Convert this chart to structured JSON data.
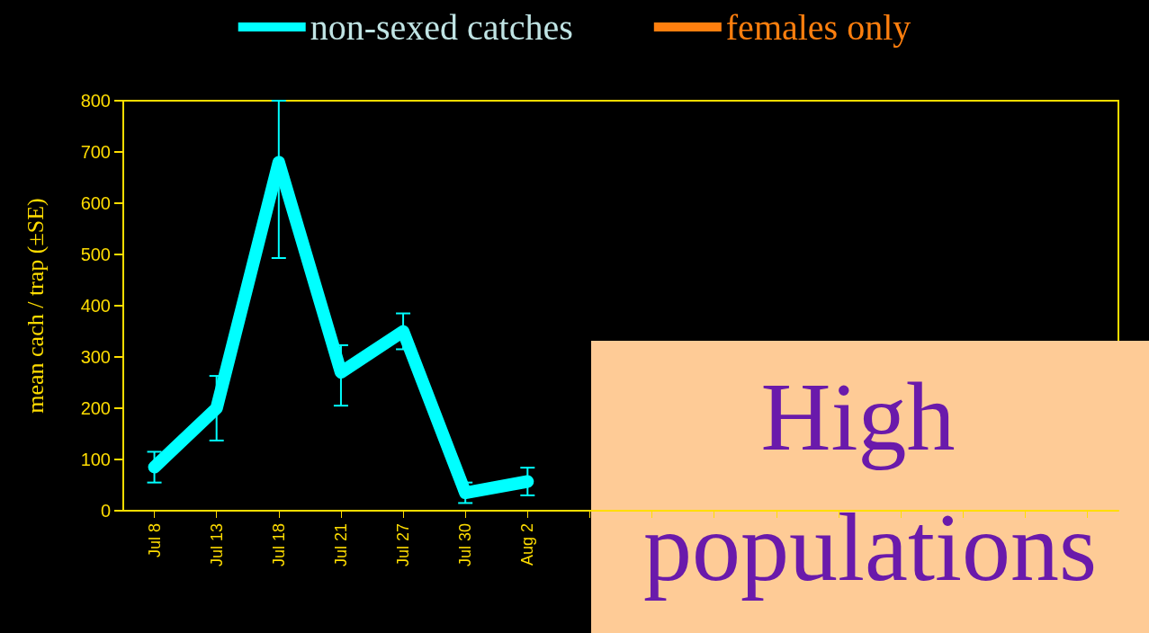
{
  "chart_data": {
    "type": "line",
    "ylabel": "mean cach / trap (±SE)",
    "categories": [
      "Jul 8",
      "Jul 13",
      "Jul 18",
      "Jul 21",
      "Jul 27",
      "Jul 30",
      "Aug 2",
      null,
      null,
      null,
      null,
      null,
      null,
      null,
      null,
      null
    ],
    "series": [
      {
        "name": "non-sexed catches",
        "color": "#00ffff",
        "values": [
          85,
          200,
          680,
          270,
          350,
          35,
          57,
          null,
          null,
          null,
          null,
          null,
          null,
          null,
          null,
          null
        ],
        "errors": [
          30,
          63,
          [
            493,
            800
          ],
          [
            205,
            323
          ],
          35,
          20,
          27,
          null,
          null,
          null,
          null,
          null,
          null,
          null,
          null,
          null
        ]
      },
      {
        "name": "females only",
        "color": "#ff7f0e",
        "values": [
          null,
          null,
          null,
          null,
          null,
          null,
          null,
          null,
          null,
          null,
          null,
          null,
          null,
          null,
          null,
          null
        ]
      }
    ],
    "ylim": [
      0,
      800
    ],
    "yticks": [
      0,
      100,
      200,
      300,
      400,
      500,
      600,
      700,
      800
    ],
    "grid": false,
    "legend": "top",
    "line_style": "solid",
    "annotations": [
      "High populations"
    ]
  }
}
